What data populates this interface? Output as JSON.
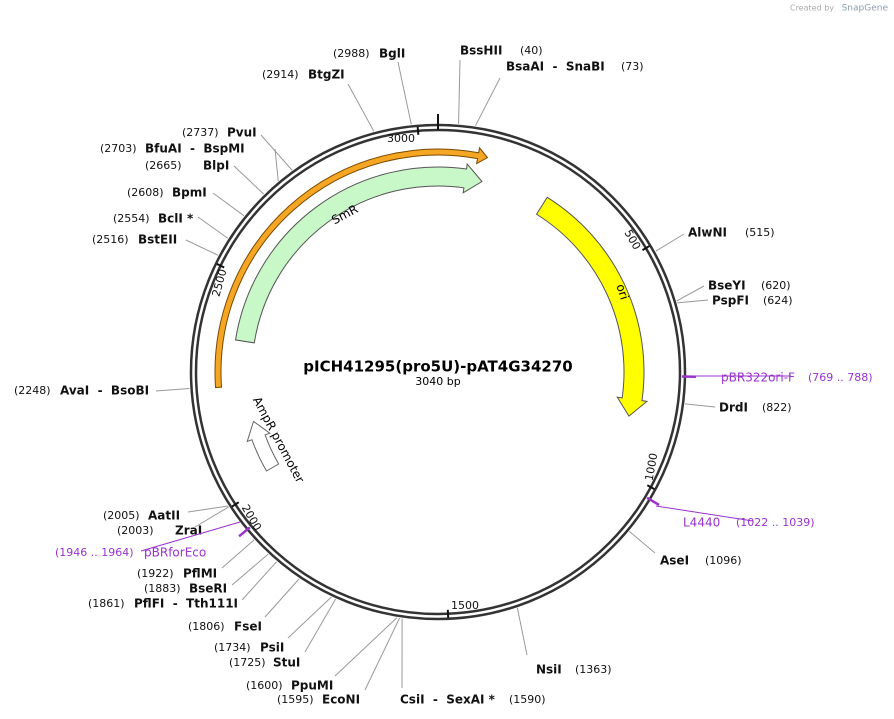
{
  "header": {
    "credit": "Created by",
    "brand": "SnapGene"
  },
  "plasmid": {
    "name": "pICH41295(pro5U)-pAT4G34270",
    "length": "3040 bp",
    "ticks": [
      "3000",
      "500",
      "1000",
      "1500",
      "2000",
      "2500"
    ]
  },
  "features": [
    {
      "name": "SmR"
    },
    {
      "name": "ori"
    },
    {
      "name": "AmpR promoter"
    }
  ],
  "primers": [
    {
      "name": "pBR322ori-F",
      "range": "(769 .. 788)"
    },
    {
      "name": "L4440",
      "range": "(1022 .. 1039)"
    },
    {
      "name": "pBRforEco",
      "range": "(1946 .. 1964)"
    }
  ],
  "sites": [
    {
      "name": "BglI",
      "position": "(2988)"
    },
    {
      "name": "BssHII",
      "position": "(40)"
    },
    {
      "name": "BsaAI  -  SnaBI",
      "position": "(73)"
    },
    {
      "name": "AlwNI",
      "position": "(515)"
    },
    {
      "name": "BseYI",
      "position": "(620)"
    },
    {
      "name": "PspFI",
      "position": "(624)"
    },
    {
      "name": "DrdI",
      "position": "(822)"
    },
    {
      "name": "AseI",
      "position": "(1096)"
    },
    {
      "name": "NsiI",
      "position": "(1363)"
    },
    {
      "name": "CsiI  -  SexAI *",
      "position": "(1590)"
    },
    {
      "name": "EcoNI",
      "position": "(1595)"
    },
    {
      "name": "PpuMI",
      "position": "(1600)"
    },
    {
      "name": "StuI",
      "position": "(1725)"
    },
    {
      "name": "PsiI",
      "position": "(1734)"
    },
    {
      "name": "FseI",
      "position": "(1806)"
    },
    {
      "name": "PflFI  -  Tth111I",
      "position": "(1861)"
    },
    {
      "name": "BseRI",
      "position": "(1883)"
    },
    {
      "name": "PflMI",
      "position": "(1922)"
    },
    {
      "name": "ZraI",
      "position": "(2003)"
    },
    {
      "name": "AatII",
      "position": "(2005)"
    },
    {
      "name": "AvaI  -  BsoBI",
      "position": "(2248)"
    },
    {
      "name": "BstEII",
      "position": "(2516)"
    },
    {
      "name": "BclI *",
      "position": "(2554)"
    },
    {
      "name": "BpmI",
      "position": "(2608)"
    },
    {
      "name": "BlpI",
      "position": "(2665)"
    },
    {
      "name": "BfuAI  -  BspMI",
      "position": "(2703)"
    },
    {
      "name": "PvuI",
      "position": "(2737)"
    },
    {
      "name": "BtgZI",
      "position": "(2914)"
    }
  ]
}
